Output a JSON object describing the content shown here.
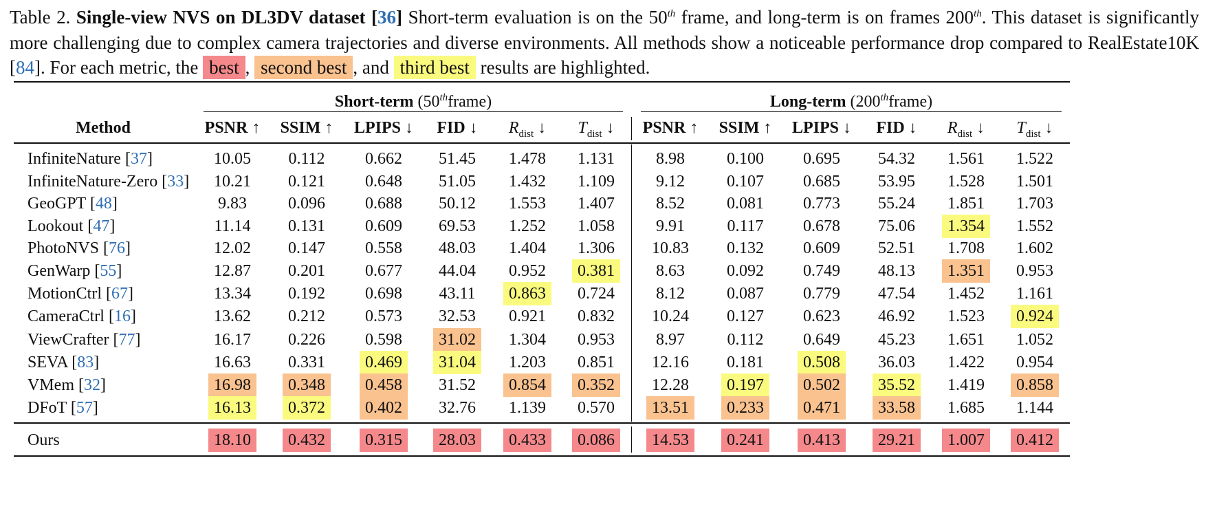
{
  "caption": {
    "label": "Table 2.",
    "bold_title": "Single-view NVS on DL3DV dataset",
    "title_cite": "36",
    "text1": "Short-term evaluation is on the 50",
    "sup1": "th",
    "text2": " frame, and long-term is on frames 200",
    "sup2": "th",
    "text3": ". This dataset is significantly more challenging due to complex camera trajectories and diverse environments. All methods show a noticeable performance drop compared to RealEstate10K ",
    "cite2": "84",
    "text4": ". For each metric, the ",
    "best": "best",
    "second": "second best",
    "third": "third best",
    "sep_comma": ",",
    "sep_and": ", and",
    "text5": " results are highlighted."
  },
  "header": {
    "method": "Method",
    "short_group": {
      "bold": "Short-term",
      "pre": "(50",
      "sup": "th",
      "post": "frame)"
    },
    "long_group": {
      "bold": "Long-term",
      "pre": "(200",
      "sup": "th",
      "post": "frame)"
    },
    "metrics": [
      "PSNR ↑",
      "SSIM ↑",
      "LPIPS ↓",
      "FID ↓",
      "R",
      "T"
    ],
    "sub_dist": "dist",
    "arrow_down": " ↓"
  },
  "colors": {
    "best": "#f4888b",
    "second": "#f9c28f",
    "third": "#fafa7f",
    "cite": "#2f6eb5"
  },
  "rows": [
    {
      "name": "InfiniteNature",
      "cite": "37",
      "short": [
        "10.05",
        "0.112",
        "0.662",
        "51.45",
        "1.478",
        "1.131"
      ],
      "short_hl": [
        0,
        0,
        0,
        0,
        0,
        0
      ],
      "long": [
        "8.98",
        "0.100",
        "0.695",
        "54.32",
        "1.561",
        "1.522"
      ],
      "long_hl": [
        0,
        0,
        0,
        0,
        0,
        0
      ]
    },
    {
      "name": "InfiniteNature-Zero",
      "cite": "33",
      "short": [
        "10.21",
        "0.121",
        "0.648",
        "51.05",
        "1.432",
        "1.109"
      ],
      "short_hl": [
        0,
        0,
        0,
        0,
        0,
        0
      ],
      "long": [
        "9.12",
        "0.107",
        "0.685",
        "53.95",
        "1.528",
        "1.501"
      ],
      "long_hl": [
        0,
        0,
        0,
        0,
        0,
        0
      ]
    },
    {
      "name": "GeoGPT",
      "cite": "48",
      "short": [
        "9.83",
        "0.096",
        "0.688",
        "50.12",
        "1.553",
        "1.407"
      ],
      "short_hl": [
        0,
        0,
        0,
        0,
        0,
        0
      ],
      "long": [
        "8.52",
        "0.081",
        "0.773",
        "55.24",
        "1.851",
        "1.703"
      ],
      "long_hl": [
        0,
        0,
        0,
        0,
        0,
        0
      ]
    },
    {
      "name": "Lookout",
      "cite": "47",
      "short": [
        "11.14",
        "0.131",
        "0.609",
        "69.53",
        "1.252",
        "1.058"
      ],
      "short_hl": [
        0,
        0,
        0,
        0,
        0,
        0
      ],
      "long": [
        "9.91",
        "0.117",
        "0.678",
        "75.06",
        "1.354",
        "1.552"
      ],
      "long_hl": [
        0,
        0,
        0,
        0,
        3,
        0
      ]
    },
    {
      "name": "PhotoNVS",
      "cite": "76",
      "short": [
        "12.02",
        "0.147",
        "0.558",
        "48.03",
        "1.404",
        "1.306"
      ],
      "short_hl": [
        0,
        0,
        0,
        0,
        0,
        0
      ],
      "long": [
        "10.83",
        "0.132",
        "0.609",
        "52.51",
        "1.708",
        "1.602"
      ],
      "long_hl": [
        0,
        0,
        0,
        0,
        0,
        0
      ]
    },
    {
      "name": "GenWarp",
      "cite": "55",
      "short": [
        "12.87",
        "0.201",
        "0.677",
        "44.04",
        "0.952",
        "0.381"
      ],
      "short_hl": [
        0,
        0,
        0,
        0,
        0,
        3
      ],
      "long": [
        "8.63",
        "0.092",
        "0.749",
        "48.13",
        "1.351",
        "0.953"
      ],
      "long_hl": [
        0,
        0,
        0,
        0,
        2,
        0
      ]
    },
    {
      "name": "MotionCtrl",
      "cite": "67",
      "short": [
        "13.34",
        "0.192",
        "0.698",
        "43.11",
        "0.863",
        "0.724"
      ],
      "short_hl": [
        0,
        0,
        0,
        0,
        3,
        0
      ],
      "long": [
        "8.12",
        "0.087",
        "0.779",
        "47.54",
        "1.452",
        "1.161"
      ],
      "long_hl": [
        0,
        0,
        0,
        0,
        0,
        0
      ]
    },
    {
      "name": "CameraCtrl",
      "cite": "16",
      "short": [
        "13.62",
        "0.212",
        "0.573",
        "32.53",
        "0.921",
        "0.832"
      ],
      "short_hl": [
        0,
        0,
        0,
        0,
        0,
        0
      ],
      "long": [
        "10.24",
        "0.127",
        "0.623",
        "46.92",
        "1.523",
        "0.924"
      ],
      "long_hl": [
        0,
        0,
        0,
        0,
        0,
        3
      ]
    },
    {
      "name": "ViewCrafter",
      "cite": "77",
      "short": [
        "16.17",
        "0.226",
        "0.598",
        "31.02",
        "1.304",
        "0.953"
      ],
      "short_hl": [
        0,
        0,
        0,
        2,
        0,
        0
      ],
      "long": [
        "8.97",
        "0.112",
        "0.649",
        "45.23",
        "1.651",
        "1.052"
      ],
      "long_hl": [
        0,
        0,
        0,
        0,
        0,
        0
      ]
    },
    {
      "name": "SEVA",
      "cite": "83",
      "short": [
        "16.63",
        "0.331",
        "0.469",
        "31.04",
        "1.203",
        "0.851"
      ],
      "short_hl": [
        0,
        0,
        3,
        3,
        0,
        0
      ],
      "long": [
        "12.16",
        "0.181",
        "0.508",
        "36.03",
        "1.422",
        "0.954"
      ],
      "long_hl": [
        0,
        0,
        3,
        0,
        0,
        0
      ]
    },
    {
      "name": "VMem",
      "cite": "32",
      "short": [
        "16.98",
        "0.348",
        "0.458",
        "31.52",
        "0.854",
        "0.352"
      ],
      "short_hl": [
        2,
        2,
        2,
        0,
        2,
        2
      ],
      "long": [
        "12.28",
        "0.197",
        "0.502",
        "35.52",
        "1.419",
        "0.858"
      ],
      "long_hl": [
        0,
        3,
        2,
        3,
        0,
        2
      ]
    },
    {
      "name": "DFoT",
      "cite": "57",
      "short": [
        "16.13",
        "0.372",
        "0.402",
        "32.76",
        "1.139",
        "0.570"
      ],
      "short_hl": [
        3,
        3,
        2,
        0,
        0,
        0
      ],
      "long": [
        "13.51",
        "0.233",
        "0.471",
        "33.58",
        "1.685",
        "1.144"
      ],
      "long_hl": [
        2,
        2,
        2,
        2,
        0,
        0
      ]
    },
    {
      "name": "Ours",
      "cite": "",
      "short": [
        "18.10",
        "0.432",
        "0.315",
        "28.03",
        "0.433",
        "0.086"
      ],
      "short_hl": [
        1,
        1,
        1,
        1,
        1,
        1
      ],
      "long": [
        "14.53",
        "0.241",
        "0.413",
        "29.21",
        "1.007",
        "0.412"
      ],
      "long_hl": [
        1,
        1,
        1,
        1,
        1,
        1
      ]
    }
  ]
}
